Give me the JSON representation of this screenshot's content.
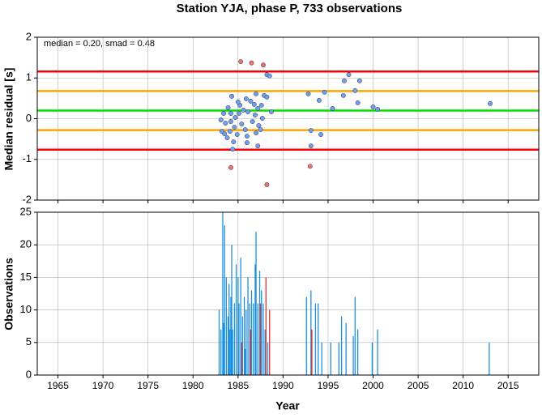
{
  "chart_data": [
    {
      "type": "scatter",
      "title": "Station YJA, phase P, 733 observations",
      "annotation": "median = 0.20, smad = 0.48",
      "ylabel": "Median residual [s]",
      "xlim": [
        1962.7,
        2018.4
      ],
      "xticks": [
        1965,
        1970,
        1975,
        1980,
        1985,
        1990,
        1995,
        2000,
        2005,
        2010,
        2015
      ],
      "ylim": [
        -2,
        2
      ],
      "yticks": [
        -2,
        -1,
        0,
        1,
        2
      ],
      "grid": true,
      "hlines": [
        {
          "value": 1.16,
          "color": "#ff0000"
        },
        {
          "value": -0.76,
          "color": "#ff0000"
        },
        {
          "value": 0.68,
          "color": "#ffa500"
        },
        {
          "value": -0.28,
          "color": "#ffa500"
        },
        {
          "value": 0.2,
          "color": "#00e000"
        }
      ],
      "series": [
        {
          "color": "#6f9ff0",
          "x": [
            1988.2,
            1988.5,
            1997.3,
            1996.8,
            1998.5,
            1998.0,
            1992.8,
            1994.6,
            1996.7,
            1994.0,
            1998.3,
            1995.5,
            2000.0,
            2000.5,
            2013.0,
            1993.1,
            1994.2,
            1993.1,
            1984.3,
            1985.2,
            1985.9,
            1986.8,
            1987.0,
            1987.9,
            1988.2,
            1986.4,
            1983.4,
            1983.9,
            1984.7,
            1985.1,
            1985.6,
            1986.1,
            1987.2,
            1987.6,
            1988.7,
            1983.1,
            1983.6,
            1984.2,
            1984.6,
            1985.4,
            1985.8,
            1986.6,
            1987.3,
            1987.7,
            1983.5,
            1984.1,
            1983.8,
            1984.9,
            1986.0,
            1987.0,
            1987.5,
            1984.4,
            1986.0,
            1987.2,
            1984.5,
            1983.2,
            1984.2,
            1985.0,
            1986.9
          ],
          "values": [
            1.08,
            1.05,
            1.08,
            0.93,
            0.93,
            0.69,
            0.61,
            0.65,
            0.57,
            0.45,
            0.39,
            0.25,
            0.29,
            0.23,
            0.37,
            -0.29,
            -0.39,
            -0.67,
            0.55,
            0.33,
            0.49,
            0.35,
            0.61,
            0.57,
            0.53,
            0.43,
            0.13,
            0.27,
            0.03,
            0.13,
            0.21,
            0.17,
            0.25,
            0.33,
            0.17,
            -0.03,
            -0.11,
            -0.07,
            -0.21,
            -0.13,
            -0.27,
            -0.07,
            -0.17,
            0.01,
            -0.37,
            -0.31,
            -0.47,
            -0.39,
            -0.43,
            -0.35,
            -0.27,
            -0.75,
            -0.59,
            -0.67,
            -0.57,
            -0.31,
            0.13,
            0.41,
            0.09
          ]
        },
        {
          "color": "#f07070",
          "x": [
            1985.3,
            1986.5,
            1987.8,
            1984.2,
            1988.2,
            1993.0
          ],
          "values": [
            1.4,
            1.37,
            1.32,
            -1.2,
            -1.62,
            -1.17
          ]
        }
      ]
    },
    {
      "type": "bar",
      "xlabel": "Year",
      "ylabel": "Observations",
      "xlim": [
        1962.7,
        2018.4
      ],
      "xticks": [
        1965,
        1970,
        1975,
        1980,
        1985,
        1990,
        1995,
        2000,
        2005,
        2010,
        2015
      ],
      "ylim": [
        0,
        25
      ],
      "yticks": [
        0,
        5,
        10,
        15,
        20,
        25
      ],
      "grid": true,
      "series": [
        {
          "color": "#1e90e0",
          "x": [
            1982.9,
            1983.1,
            1983.3,
            1983.5,
            1983.4,
            1983.7,
            1983.9,
            1984.0,
            1984.2,
            1984.3,
            1984.4,
            1984.6,
            1984.8,
            1985.0,
            1985.1,
            1985.3,
            1985.5,
            1985.7,
            1985.9,
            1986.1,
            1986.3,
            1986.5,
            1986.7,
            1986.9,
            1987.0,
            1987.2,
            1987.4,
            1987.6,
            1987.8,
            1988.0,
            1988.3,
            1984.1,
            1985.8,
            1992.6,
            1993.1,
            1993.6,
            1993.9,
            1994.3,
            1995.3,
            1996.2,
            1996.5,
            1997.0,
            1997.8,
            1998.0,
            1998.3,
            1999.9,
            2000.5,
            2012.9
          ],
          "values": [
            10,
            7,
            25,
            23,
            8,
            15,
            9,
            14,
            12,
            20,
            7,
            11,
            17,
            15,
            11,
            18,
            9,
            12,
            10,
            15,
            11,
            13,
            11,
            17,
            22,
            11,
            16,
            13,
            11,
            7,
            5,
            7,
            4,
            12,
            13,
            11,
            11,
            5,
            5,
            5,
            9,
            8,
            6,
            12,
            7,
            5,
            7,
            5
          ]
        },
        {
          "color": "#e03030",
          "x": [
            1985.4,
            1986.4,
            1987.5,
            1988.1,
            1988.5,
            1993.2
          ],
          "values": [
            5,
            7,
            11,
            15,
            10,
            7
          ]
        }
      ]
    }
  ]
}
